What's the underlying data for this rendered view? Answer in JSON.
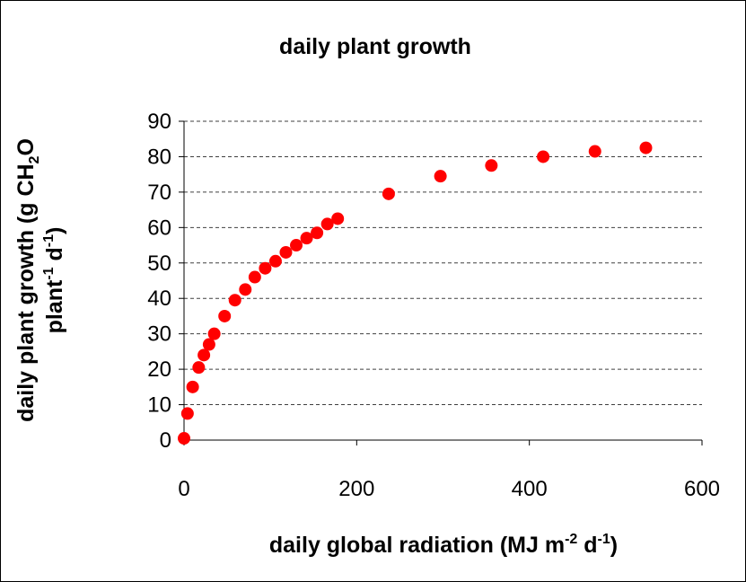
{
  "chart_data": {
    "type": "scatter",
    "title": "daily plant growth",
    "xlabel": {
      "prefix": "daily global radiation (MJ m",
      "sup1": "-2",
      "mid": " d",
      "sup2": "-1",
      "suffix": ")"
    },
    "ylabel": {
      "line1_prefix": "daily plant growth (g CH",
      "line1_sub": "2",
      "line1_suffix": "O",
      "line2_prefix": "plant",
      "line2_sup1": "-1",
      "line2_mid": " d",
      "line2_sup2": "-1",
      "line2_suffix": ")"
    },
    "xlim": [
      0,
      600
    ],
    "ylim": [
      0,
      90
    ],
    "x_ticks": [
      0,
      200,
      400,
      600
    ],
    "y_ticks": [
      0,
      10,
      20,
      30,
      40,
      50,
      60,
      70,
      80,
      90
    ],
    "grid": "horizontal dashed",
    "marker_color": "#ff0000",
    "series": [
      {
        "x": [
          0,
          4,
          10,
          17,
          23,
          29,
          35,
          47,
          59,
          71,
          82,
          94,
          106,
          118,
          130,
          142,
          154,
          166,
          178,
          237,
          297,
          356,
          416,
          476,
          535
        ],
        "y": [
          0.5,
          7.5,
          15,
          20.5,
          24,
          27,
          30,
          35,
          39.5,
          42.5,
          46,
          48.5,
          50.5,
          53,
          55,
          57,
          58.5,
          61,
          62.5,
          69.5,
          74.5,
          77.5,
          80,
          81.5,
          82.5
        ]
      }
    ]
  }
}
